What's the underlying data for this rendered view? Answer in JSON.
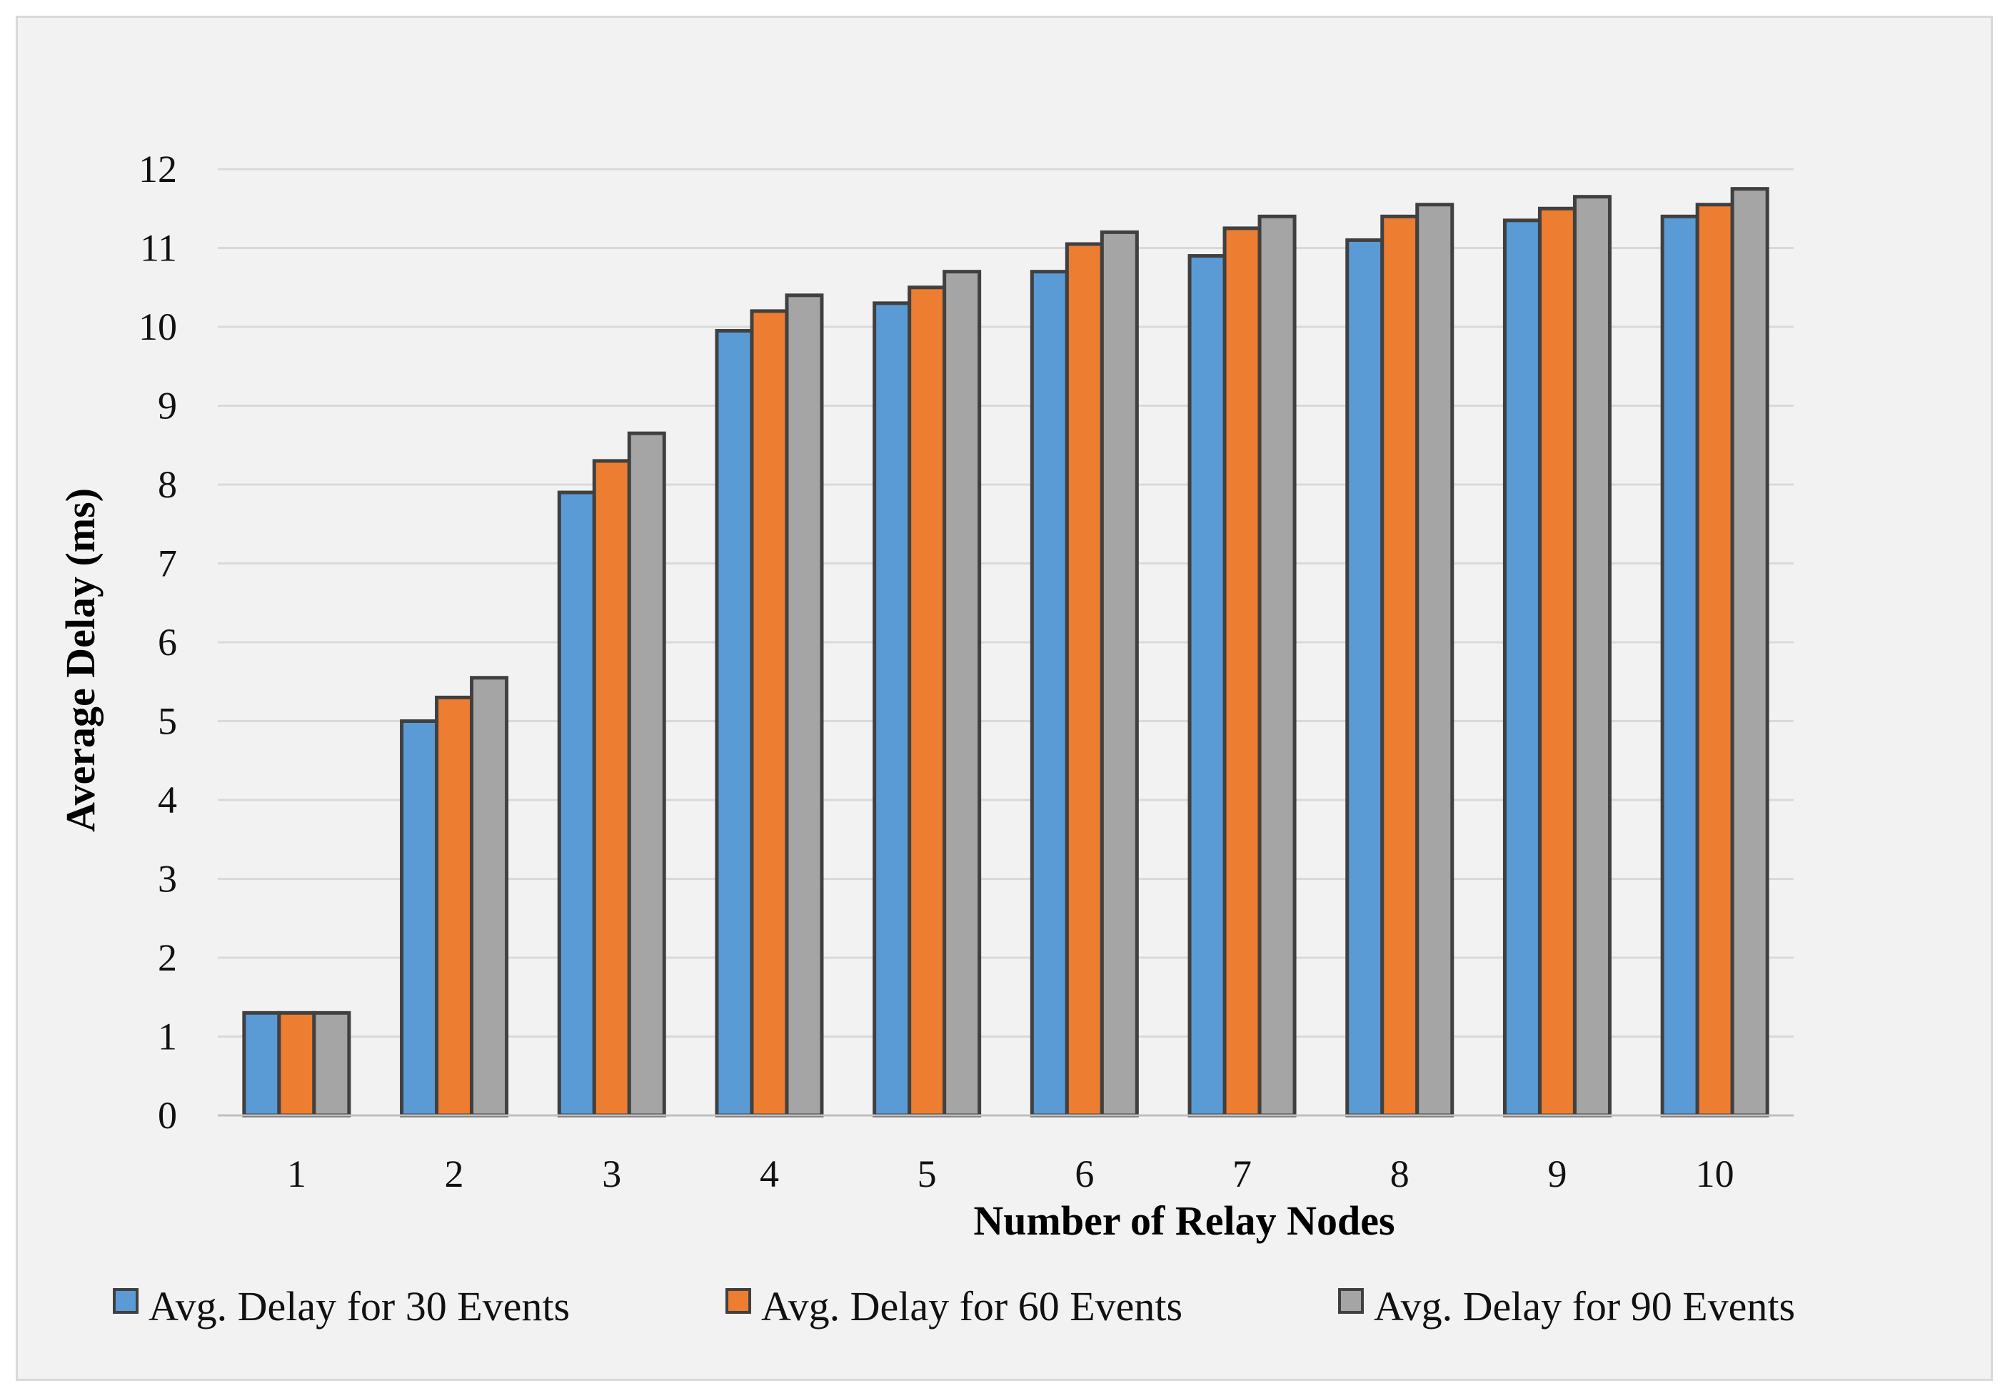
{
  "chart_data": {
    "type": "bar",
    "title": "",
    "xlabel": "Number of Relay Nodes",
    "ylabel": "Average Delay (ms)",
    "ylim": [
      0,
      12
    ],
    "yticks": [
      "0",
      "1",
      "2",
      "3",
      "4",
      "5",
      "6",
      "7",
      "8",
      "9",
      "10",
      "11",
      "12"
    ],
    "categories": [
      "1",
      "2",
      "3",
      "4",
      "5",
      "6",
      "7",
      "8",
      "9",
      "10"
    ],
    "grid": true,
    "legend_position": "bottom",
    "series": [
      {
        "name": "Avg. Delay for 30 Events",
        "color": "#5b9bd5",
        "values": [
          1.3,
          5.0,
          7.9,
          9.95,
          10.3,
          10.7,
          10.9,
          11.1,
          11.35,
          11.4
        ]
      },
      {
        "name": "Avg. Delay for 60 Events",
        "color": "#ed7d31",
        "values": [
          1.3,
          5.3,
          8.3,
          10.2,
          10.5,
          11.05,
          11.25,
          11.4,
          11.5,
          11.55
        ]
      },
      {
        "name": "Avg. Delay for 90 Events",
        "color": "#a5a5a5",
        "values": [
          1.3,
          5.55,
          8.65,
          10.4,
          10.7,
          11.2,
          11.4,
          11.55,
          11.65,
          11.75
        ]
      }
    ]
  }
}
